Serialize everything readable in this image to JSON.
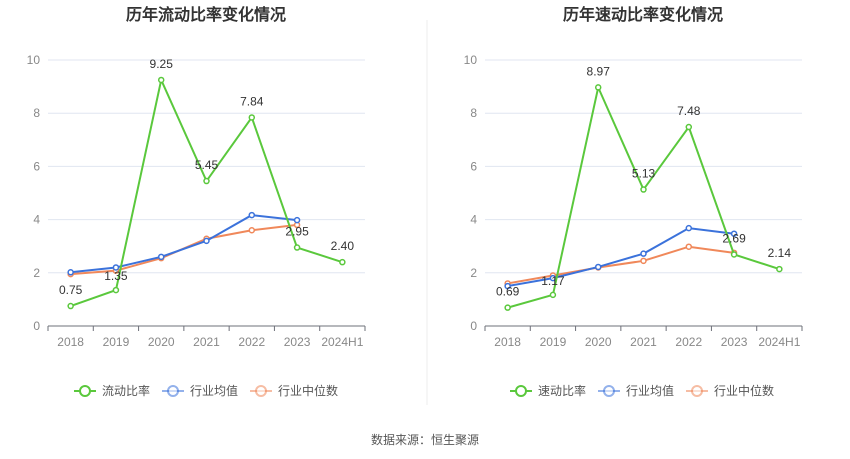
{
  "chart_data": [
    {
      "type": "line",
      "title": "历年流动比率变化情况",
      "categories": [
        "2018",
        "2019",
        "2020",
        "2021",
        "2022",
        "2023",
        "2024H1"
      ],
      "ylim": [
        0,
        10
      ],
      "yticks": [
        0,
        2,
        4,
        6,
        8,
        10
      ],
      "grid": true,
      "legend_position": "bottom",
      "series": [
        {
          "name": "流动比率",
          "color": "#5ac83c",
          "labeled": true,
          "values": [
            0.75,
            1.35,
            9.25,
            5.45,
            7.84,
            2.95,
            2.4
          ]
        },
        {
          "name": "行业均值",
          "color": "#3b72db",
          "labeled": false,
          "values": [
            2.02,
            2.2,
            2.6,
            3.2,
            4.17,
            3.98,
            null
          ]
        },
        {
          "name": "行业中位数",
          "color": "#f0885a",
          "labeled": false,
          "values": [
            1.95,
            2.08,
            2.55,
            3.28,
            3.6,
            3.8,
            null
          ]
        }
      ],
      "data_labels": [
        "0.75",
        "1.35",
        "9.25",
        "5.45",
        "7.84",
        "2.95",
        "2.40"
      ]
    },
    {
      "type": "line",
      "title": "历年速动比率变化情况",
      "categories": [
        "2018",
        "2019",
        "2020",
        "2021",
        "2022",
        "2023",
        "2024H1"
      ],
      "ylim": [
        0,
        10
      ],
      "yticks": [
        0,
        2,
        4,
        6,
        8,
        10
      ],
      "grid": true,
      "legend_position": "bottom",
      "series": [
        {
          "name": "速动比率",
          "color": "#5ac83c",
          "labeled": true,
          "values": [
            0.69,
            1.17,
            8.97,
            5.13,
            7.48,
            2.69,
            2.14
          ]
        },
        {
          "name": "行业均值",
          "color": "#3b72db",
          "labeled": false,
          "values": [
            1.5,
            1.8,
            2.22,
            2.72,
            3.68,
            3.47,
            null
          ]
        },
        {
          "name": "行业中位数",
          "color": "#f0885a",
          "labeled": false,
          "values": [
            1.6,
            1.9,
            2.2,
            2.45,
            2.98,
            2.75,
            null
          ]
        }
      ],
      "data_labels": [
        "0.69",
        "1.17",
        "8.97",
        "5.13",
        "7.48",
        "2.69",
        "2.14"
      ]
    }
  ],
  "source": "数据来源：恒生聚源"
}
